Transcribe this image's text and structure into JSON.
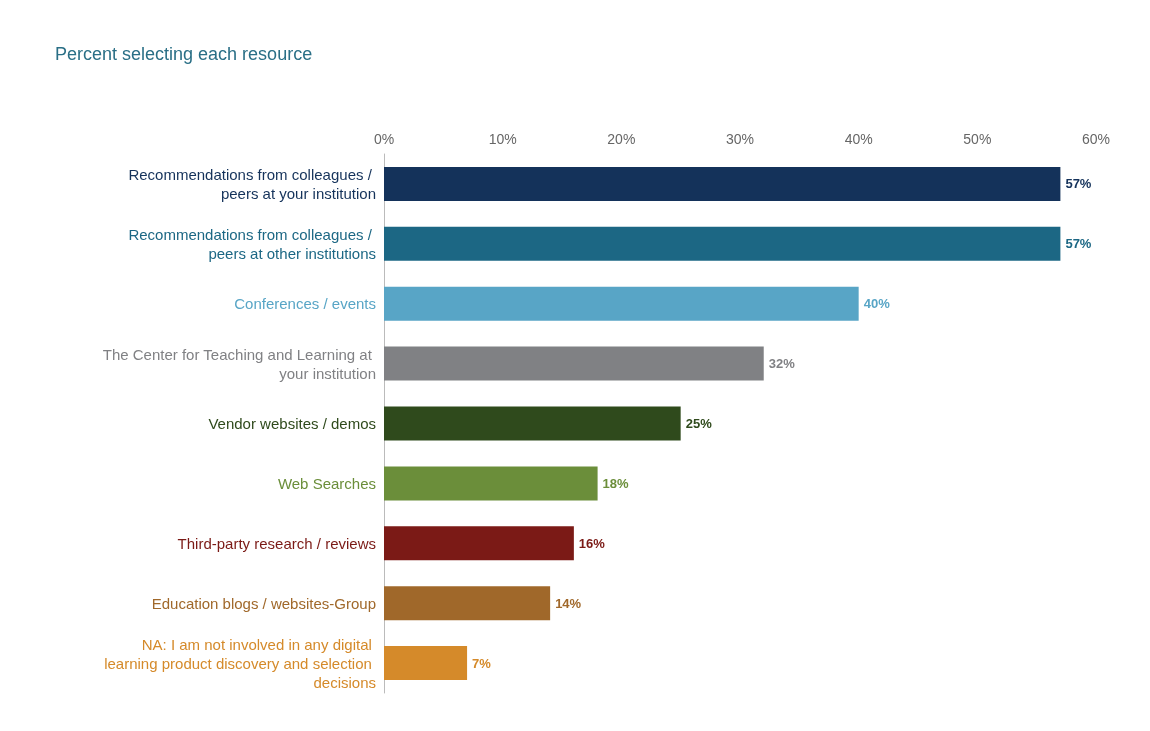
{
  "chart_data": {
    "type": "bar",
    "orientation": "horizontal",
    "title": "Percent selecting each resource",
    "categories": [
      "Recommendations from colleagues / peers at your institution",
      "Recommendations from colleagues / peers at other institutions",
      "Conferences / events",
      "The Center for Teaching and Learning at your institution",
      "Vendor websites / demos",
      "Web Searches",
      "Third-party research / reviews",
      "Education blogs / websites-Group",
      "NA: I am not involved in any digital learning product discovery and selection decisions"
    ],
    "values": [
      57,
      57,
      40,
      32,
      25,
      18,
      16,
      14,
      7
    ],
    "value_labels": [
      "57%",
      "57%",
      "40%",
      "32%",
      "25%",
      "18%",
      "16%",
      "14%",
      "7%"
    ],
    "colors": [
      "#14325a",
      "#1c6784",
      "#58a5c6",
      "#808184",
      "#2f4a1c",
      "#6b8e3a",
      "#7b1a16",
      "#a0682a",
      "#d58a2a"
    ],
    "xlim": [
      0,
      60
    ],
    "xticks": [
      {
        "value": 0,
        "label": "0%"
      },
      {
        "value": 10,
        "label": "10%"
      },
      {
        "value": 20,
        "label": "20%"
      },
      {
        "value": 30,
        "label": "30%"
      },
      {
        "value": 40,
        "label": "40%"
      },
      {
        "value": 50,
        "label": "50%"
      },
      {
        "value": 60,
        "label": "60%"
      }
    ],
    "grid": false
  }
}
